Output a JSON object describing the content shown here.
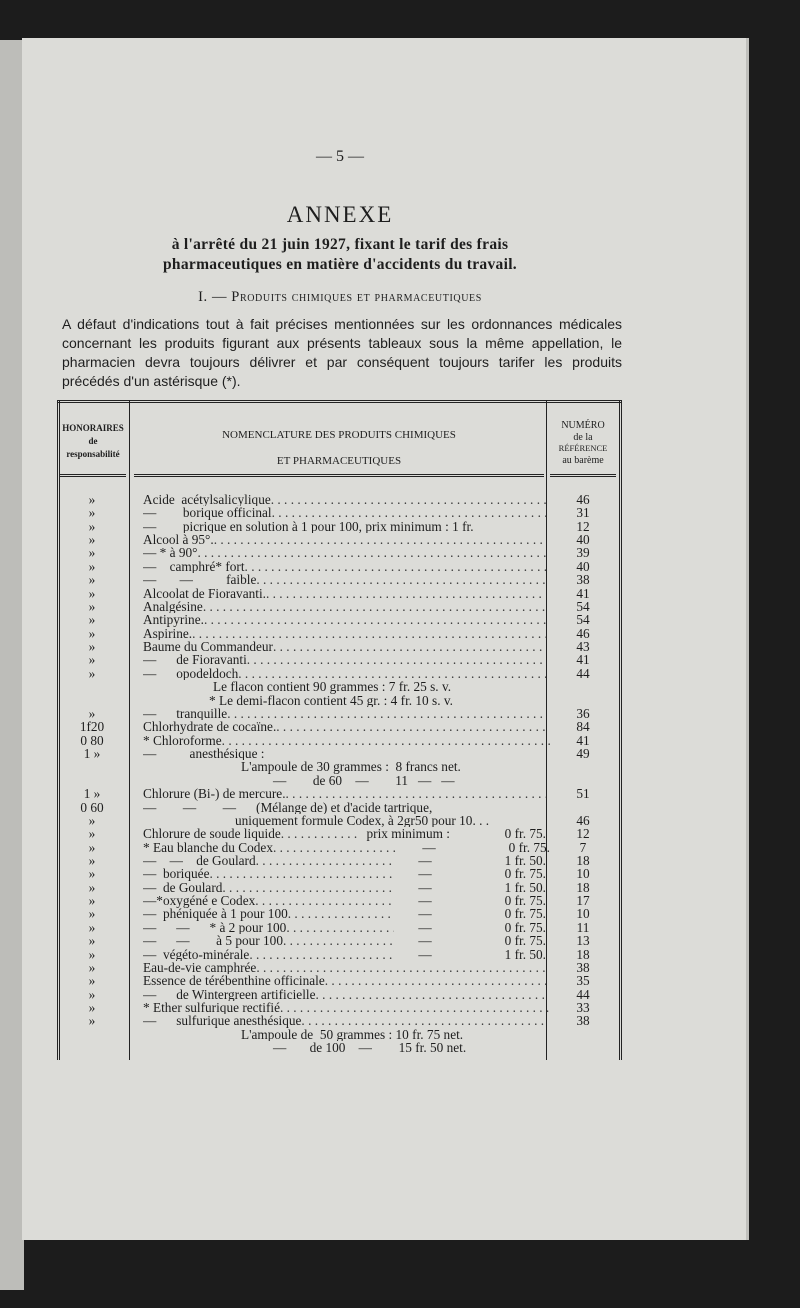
{
  "page_number": "— 5 —",
  "title": "ANNEXE",
  "subtitle_line1": "à l'arrêté du 21 juin 1927, fixant le tarif des frais",
  "subtitle_line2": "pharmaceutiques en matière d'accidents du travail.",
  "section_heading": "I. — Produits chimiques et pharmaceutiques",
  "intro_paragraph": "A défaut d'indications tout à fait précises mentionnées sur les ordonnances médicales concernant les produits figurant aux présents tableaux sous la même appellation, le pharmacien devra toujours délivrer et par conséquent toujours tarifer les produits précédés d'un astérisque (*).",
  "table": {
    "headers": {
      "honoraires": [
        "HONORAIRES",
        "de",
        "responsabilité"
      ],
      "nomenclature": [
        "NOMENCLATURE DES PRODUITS CHIMIQUES",
        "ET PHARMACEUTIQUES"
      ],
      "numero": [
        "NUMÉRO",
        "de la",
        "RÉFÉRENCE",
        "au barème"
      ]
    },
    "rows": [
      {
        "hon": "»",
        "name": "Acide  acétylsalicylique",
        "leader": true,
        "num": "46"
      },
      {
        "hon": "»",
        "name": "—        borique officinal",
        "leader": true,
        "num": "31"
      },
      {
        "hon": "»",
        "name": "—        picrique en solution à 1 pour 100, prix minimum : 1 fr.",
        "leader": false,
        "num": "12"
      },
      {
        "hon": "»",
        "name": "Alcool à 95°.",
        "leader": true,
        "num": "40"
      },
      {
        "hon": "»",
        "name": "— * à 90°",
        "leader": true,
        "num": "39"
      },
      {
        "hon": "»",
        "name": "—    camphré* fort",
        "leader": true,
        "num": "40"
      },
      {
        "hon": "»",
        "name": "—       —          faible",
        "leader": true,
        "num": "38"
      },
      {
        "hon": "»",
        "name": "Alcoolat de Fioravanti.",
        "leader": true,
        "num": "41"
      },
      {
        "hon": "»",
        "name": "Analgésine",
        "leader": true,
        "num": "54"
      },
      {
        "hon": "»",
        "name": "Antipyrine.",
        "leader": true,
        "num": "54"
      },
      {
        "hon": "»",
        "name": "Aspirine.",
        "leader": true,
        "num": "46"
      },
      {
        "hon": "»",
        "name": "Baume du Commandeur",
        "leader": true,
        "num": "43"
      },
      {
        "hon": "»",
        "name": "—      de Fioravanti",
        "leader": true,
        "num": "41"
      },
      {
        "hon": "»",
        "name": "—      opodeldoch",
        "leader": true,
        "num": "44"
      },
      {
        "hon": "",
        "name": "Le flacon contient 90 grammes : 7 fr. 25 s. v.",
        "leader": false,
        "num": ""
      },
      {
        "hon": "",
        "name": "* Le demi-flacon contient 45 gr. : 4 fr. 10 s. v.",
        "leader": false,
        "num": ""
      },
      {
        "hon": "»",
        "name": "—      tranquille",
        "leader": true,
        "num": "36"
      },
      {
        "hon": "1f20",
        "name": "Chlorhydrate de cocaïne.",
        "leader": true,
        "num": "84"
      },
      {
        "hon": "0 80",
        "name": "* Chloroforme",
        "leader": true,
        "num": "41"
      },
      {
        "hon": "1 »",
        "name": "—          anesthésique :",
        "leader": false,
        "num": "49"
      },
      {
        "hon": "",
        "name": "L'ampoule de 30 grammes :  8 francs net.",
        "leader": false,
        "num": ""
      },
      {
        "hon": "",
        "name": "—        de 60    —        11   —   —",
        "leader": false,
        "num": ""
      },
      {
        "hon": "1 »",
        "name": "Chlorure (Bi-) de mercure.",
        "leader": true,
        "num": "51"
      },
      {
        "hon": "0 60",
        "name": "—        —        —      (Mélange de) et d'acide tartrique,",
        "leader": false,
        "num": ""
      },
      {
        "hon": "»",
        "name": "uniquement formule Codex, à 2gr50 pour 10. . .",
        "leader": false,
        "num": "46"
      },
      {
        "hon": "»",
        "name": "Chlorure de soude liquide",
        "leader": true,
        "mid": "prix minimum :",
        "price": "0 fr. 75.",
        "num": "12"
      },
      {
        "hon": "»",
        "name": "* Eau blanche du Codex",
        "leader": true,
        "mid": "—",
        "price": "0 fr. 75.",
        "num": "7"
      },
      {
        "hon": "»",
        "name": "—    —    de Goulard",
        "leader": true,
        "mid": "—",
        "price": "1 fr. 50.",
        "num": "18"
      },
      {
        "hon": "»",
        "name": "—  boriquée",
        "leader": true,
        "mid": "—",
        "price": "0 fr. 75.",
        "num": "10"
      },
      {
        "hon": "»",
        "name": "—  de Goulard",
        "leader": true,
        "mid": "—",
        "price": "1 fr. 50.",
        "num": "18"
      },
      {
        "hon": "»",
        "name": "—*oxygéné e Codex",
        "leader": true,
        "mid": "—",
        "price": "0 fr. 75.",
        "num": "17"
      },
      {
        "hon": "»",
        "name": "—  phéniquée à 1 pour 100",
        "leader": true,
        "mid": "—",
        "price": "0 fr. 75.",
        "num": "10"
      },
      {
        "hon": "»",
        "name": "—      —      * à 2 pour 100",
        "leader": true,
        "mid": "—",
        "price": "0 fr. 75.",
        "num": "11"
      },
      {
        "hon": "»",
        "name": "—      —        à 5 pour 100",
        "leader": true,
        "mid": "—",
        "price": "0 fr. 75.",
        "num": "13"
      },
      {
        "hon": "»",
        "name": "—  végéto-minérale",
        "leader": true,
        "mid": "—",
        "price": "1 fr. 50.",
        "num": "18"
      },
      {
        "hon": "»",
        "name": "Eau-de-vie camphrée",
        "leader": true,
        "num": "38"
      },
      {
        "hon": "»",
        "name": "Essence de térébenthine officinale",
        "leader": true,
        "num": "35"
      },
      {
        "hon": "»",
        "name": "—      de Wintergreen artificielle",
        "leader": true,
        "num": "44"
      },
      {
        "hon": "»",
        "name": "* Ether sulfurique rectifié",
        "leader": true,
        "num": "33"
      },
      {
        "hon": "»",
        "name": "—      sulfurique anesthésique",
        "leader": true,
        "num": "38"
      },
      {
        "hon": "",
        "name": "L'ampoule de  50 grammes : 10 fr. 75 net.",
        "leader": false,
        "num": ""
      },
      {
        "hon": "",
        "name": "—       de 100    —        15 fr. 50 net.",
        "leader": false,
        "num": ""
      }
    ]
  }
}
